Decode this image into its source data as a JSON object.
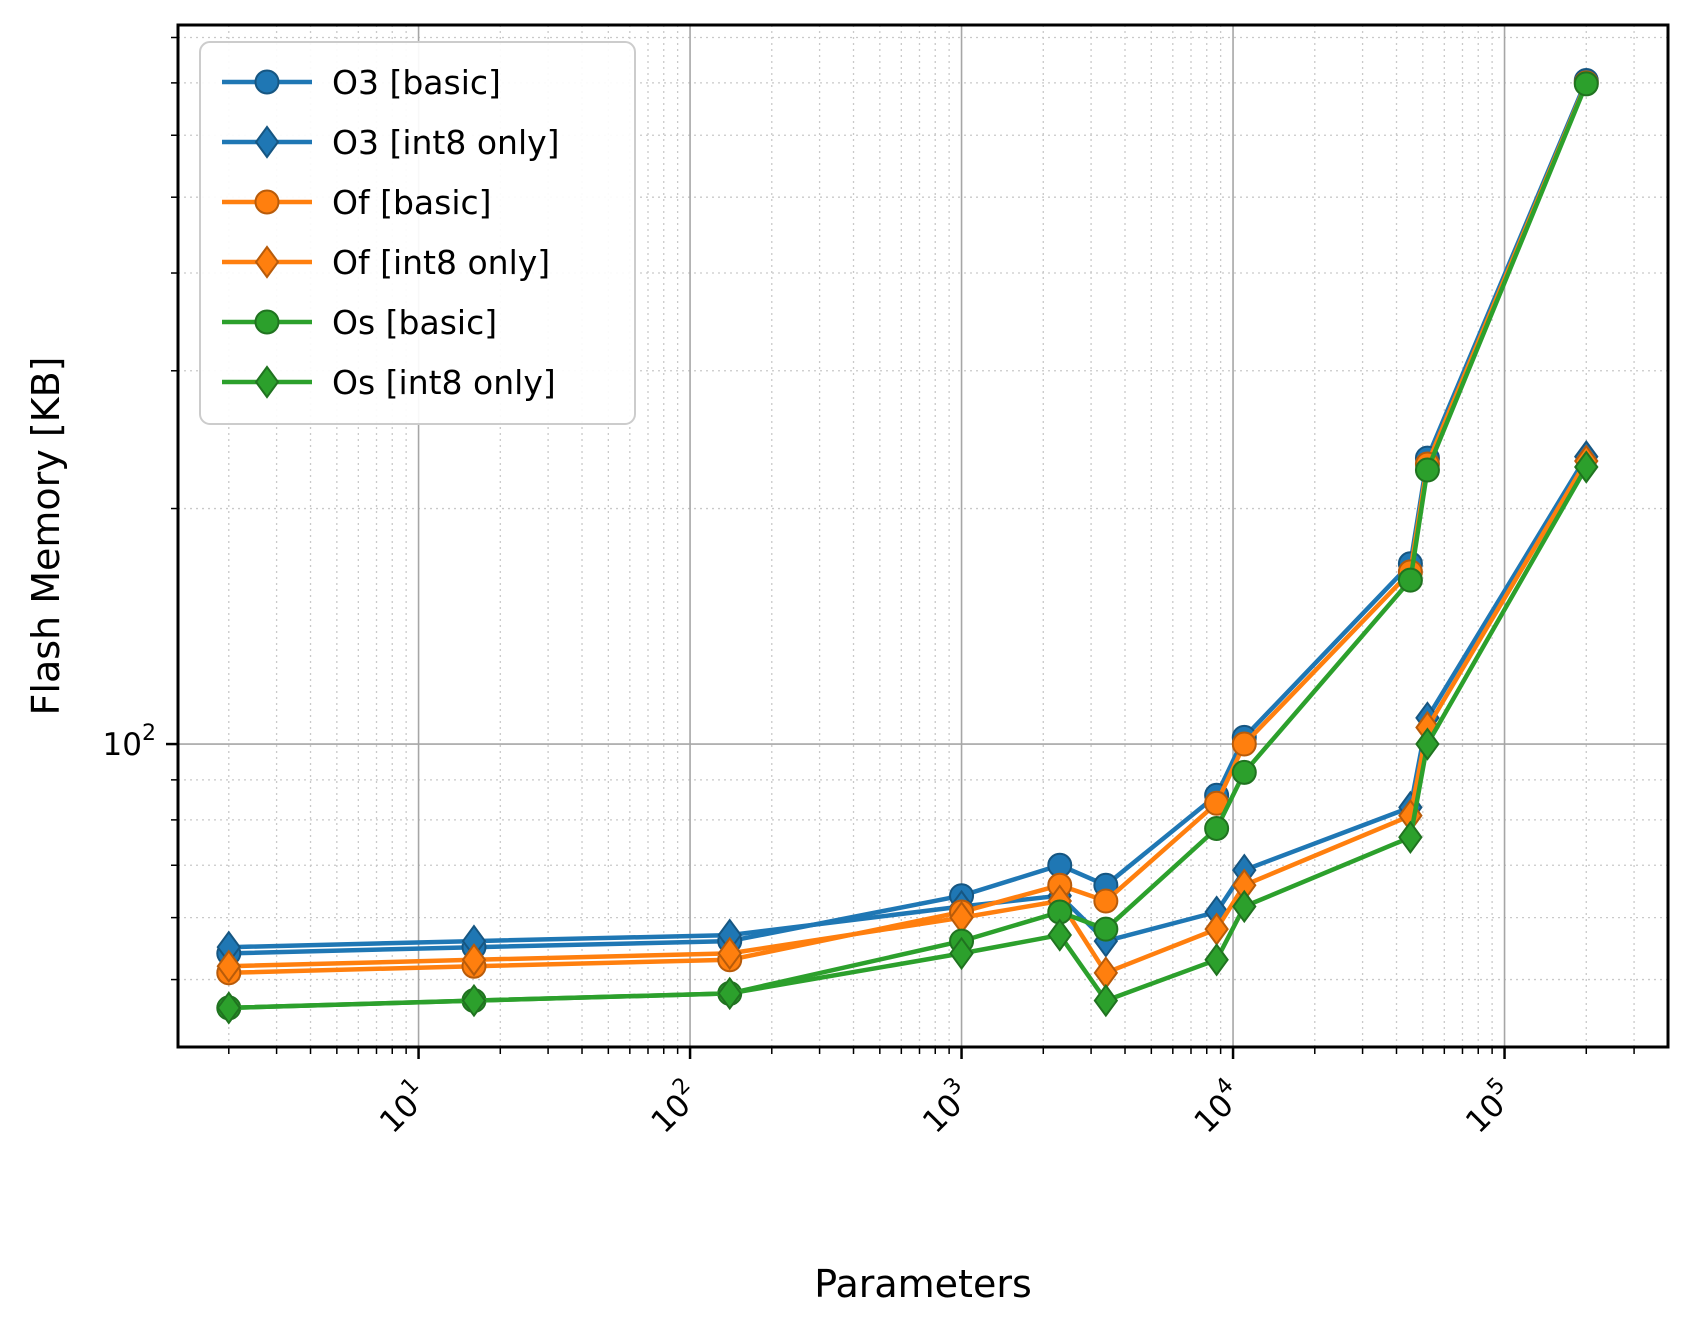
{
  "chart_data": {
    "type": "line",
    "title": "",
    "xlabel": "Parameters",
    "ylabel": "Flash Memory [KB]",
    "x_scale": "log",
    "y_scale": "log",
    "xlim": [
      1.3,
      400000
    ],
    "ylim": [
      41,
      830
    ],
    "x_tick_exponents": [
      1,
      2,
      3,
      4,
      5
    ],
    "y_tick_exponents": [
      2
    ],
    "grid": "major solid + minor dotted",
    "legend_position": "upper left",
    "x": [
      2,
      16,
      140,
      1000,
      2300,
      3400,
      8700,
      11000,
      45000,
      52000,
      200000
    ],
    "series": [
      {
        "name": "O3 [basic]",
        "color": "#1f77b4",
        "marker": "circle",
        "values": [
          54,
          55,
          56,
          64,
          70,
          66,
          86,
          102,
          170,
          232,
          705
        ]
      },
      {
        "name": "O3 [int8 only]",
        "color": "#1f77b4",
        "marker": "diamond",
        "values": [
          55,
          56,
          57,
          62,
          64,
          56,
          61,
          69,
          83,
          108,
          233
        ]
      },
      {
        "name": "Of [basic]",
        "color": "#ff7f0e",
        "marker": "circle",
        "values": [
          51,
          52,
          53,
          61,
          66,
          63,
          84,
          100,
          166,
          228,
          700
        ]
      },
      {
        "name": "Of [int8 only]",
        "color": "#ff7f0e",
        "marker": "diamond",
        "values": [
          52,
          53,
          54,
          60,
          63,
          51,
          58,
          66,
          81,
          105,
          230
        ]
      },
      {
        "name": "Os [basic]",
        "color": "#2ca02c",
        "marker": "circle",
        "values": [
          46,
          47,
          48,
          56,
          61,
          58,
          78,
          92,
          162,
          224,
          698
        ]
      },
      {
        "name": "Os [int8 only]",
        "color": "#2ca02c",
        "marker": "diamond",
        "values": [
          46,
          47,
          48,
          54,
          57,
          47,
          53,
          62,
          76,
          100,
          226
        ]
      }
    ]
  }
}
